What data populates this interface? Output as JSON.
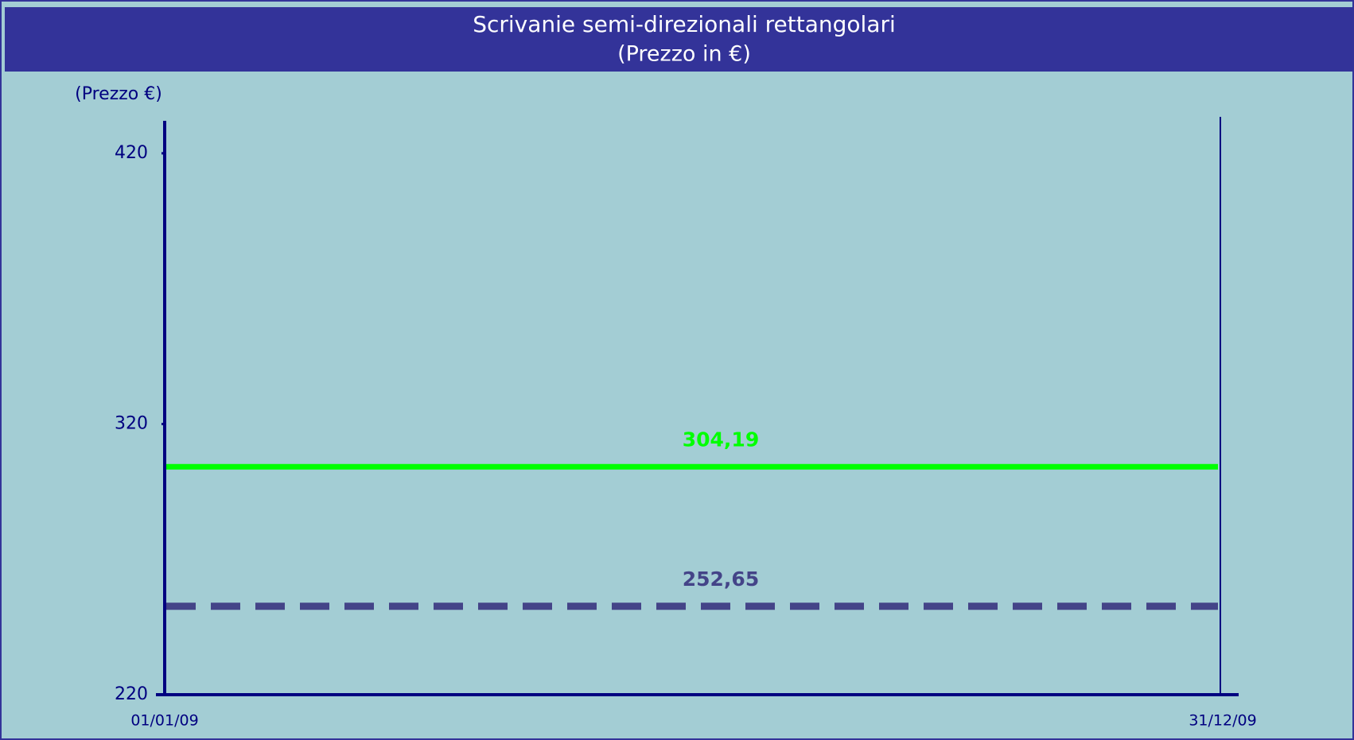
{
  "chart_data": {
    "type": "line",
    "title": "Scrivanie semi-direzionali rettangolari",
    "subtitle": "(Prezzo in €)",
    "y_label": "(Prezzo €)",
    "categories": [
      "01/01/09",
      "31/12/09"
    ],
    "series": [
      {
        "color": "#00ff00",
        "dashed": false,
        "values": [
          304.19,
          304.19
        ],
        "value_labels": [
          "304,19"
        ]
      },
      {
        "color": "#444488",
        "dashed": true,
        "values": [
          252.65,
          252.65
        ],
        "value_labels": [
          "252,65"
        ]
      }
    ],
    "ylim": [
      220,
      432
    ],
    "yticks": [
      220,
      320,
      420
    ],
    "grid": false
  }
}
